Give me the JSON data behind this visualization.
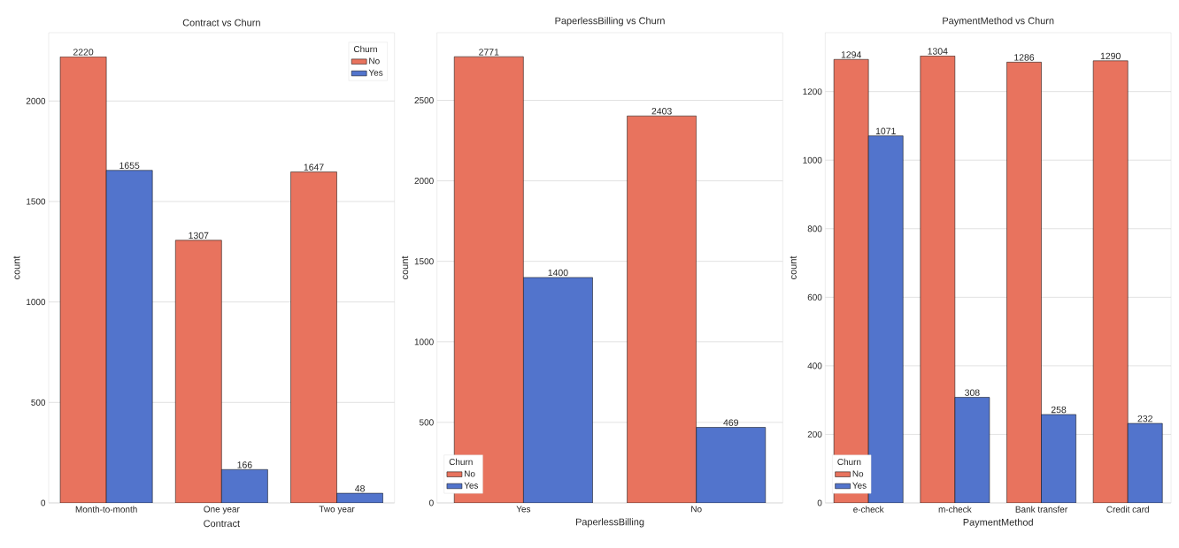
{
  "chart_data": [
    {
      "type": "bar",
      "title": "Contract vs Churn",
      "xlabel": "Contract",
      "ylabel": "count",
      "categories": [
        "Month-to-month",
        "One year",
        "Two year"
      ],
      "series": [
        {
          "name": "No",
          "color": "#e8735e",
          "values": [
            2220,
            1307,
            1647
          ]
        },
        {
          "name": "Yes",
          "color": "#5274cc",
          "values": [
            1655,
            166,
            48
          ]
        }
      ],
      "ylim": [
        0,
        2340
      ],
      "yticks": [
        0,
        500,
        1000,
        1500,
        2000
      ],
      "grid": "y",
      "legend": "top right",
      "legend_title": "Churn",
      "data_labels": true
    },
    {
      "type": "bar",
      "title": "PaperlessBilling vs Churn",
      "xlabel": "PaperlessBilling",
      "ylabel": "count",
      "categories": [
        "Yes",
        "No"
      ],
      "series": [
        {
          "name": "No",
          "color": "#e8735e",
          "values": [
            2771,
            2403
          ]
        },
        {
          "name": "Yes",
          "color": "#5274cc",
          "values": [
            1400,
            469
          ]
        }
      ],
      "ylim": [
        0,
        2920
      ],
      "yticks": [
        0,
        500,
        1000,
        1500,
        2000,
        2500
      ],
      "grid": "y",
      "legend": "bottom left",
      "legend_title": "Churn",
      "data_labels": true
    },
    {
      "type": "bar",
      "title": "PaymentMethod vs Churn",
      "xlabel": "PaymentMethod",
      "ylabel": "count",
      "categories": [
        "e-check",
        "m-check",
        "Bank transfer",
        "Credit card"
      ],
      "series": [
        {
          "name": "No",
          "color": "#e8735e",
          "values": [
            1294,
            1304,
            1286,
            1290
          ]
        },
        {
          "name": "Yes",
          "color": "#5274cc",
          "values": [
            1071,
            308,
            258,
            232
          ]
        }
      ],
      "ylim": [
        0,
        1372
      ],
      "yticks": [
        0,
        200,
        400,
        600,
        800,
        1000,
        1200
      ],
      "grid": "y",
      "legend": "bottom left",
      "legend_title": "Churn",
      "data_labels": true
    }
  ]
}
